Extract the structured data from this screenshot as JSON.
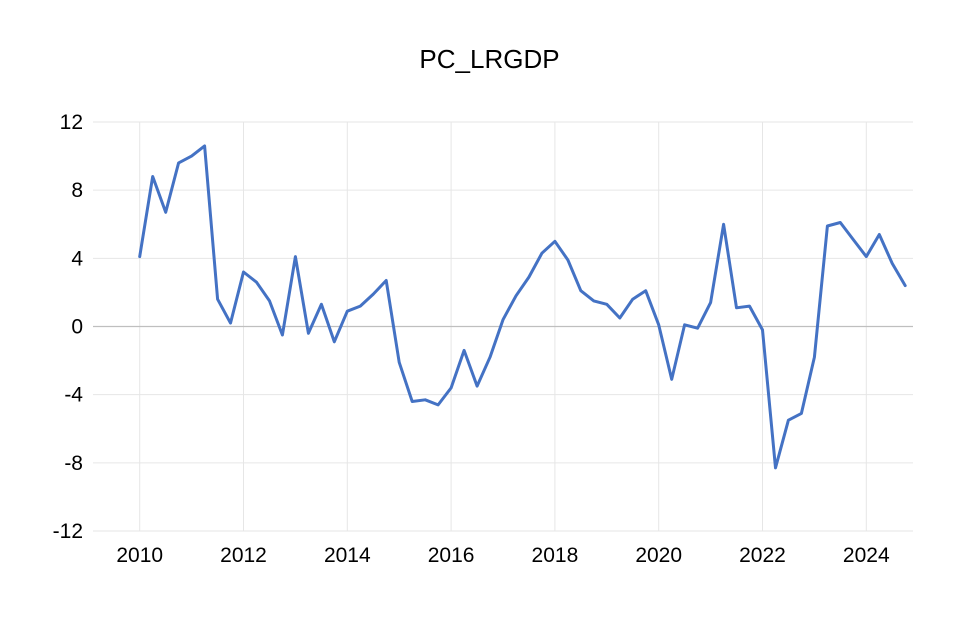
{
  "chart_data": {
    "type": "line",
    "title": "PC_LRGDP",
    "xlabel": "",
    "ylabel": "",
    "ylim": [
      -12,
      12
    ],
    "yticks": [
      12,
      8,
      4,
      0,
      -4,
      -8,
      -12
    ],
    "xlim": [
      2009.1,
      2024.9
    ],
    "xticks": [
      2010,
      2012,
      2014,
      2016,
      2018,
      2020,
      2022,
      2024
    ],
    "grid": true,
    "legend": "none",
    "line_color": "#4472c4",
    "series": [
      {
        "x": [
          2010.0,
          2010.25,
          2010.5,
          2010.75,
          2011.0,
          2011.25,
          2011.5,
          2011.75,
          2012.0,
          2012.25,
          2012.5,
          2012.75,
          2013.0,
          2013.25,
          2013.5,
          2013.75,
          2014.0,
          2014.25,
          2014.5,
          2014.75,
          2015.0,
          2015.25,
          2015.5,
          2015.75,
          2016.0,
          2016.25,
          2016.5,
          2016.75,
          2017.0,
          2017.25,
          2017.5,
          2017.75,
          2018.0,
          2018.25,
          2018.5,
          2018.75,
          2019.0,
          2019.25,
          2019.5,
          2019.75,
          2020.0,
          2020.25,
          2020.5,
          2020.75,
          2021.0,
          2021.25,
          2021.5,
          2021.75,
          2022.0,
          2022.25,
          2022.5,
          2022.75,
          2023.0,
          2023.25,
          2023.5,
          2023.75,
          2024.0,
          2024.25,
          2024.5,
          2024.75
        ],
        "values": [
          4.1,
          8.8,
          6.7,
          9.6,
          10.0,
          10.6,
          1.6,
          0.2,
          3.2,
          2.6,
          1.5,
          -0.5,
          4.1,
          -0.4,
          1.3,
          -0.9,
          0.9,
          1.2,
          1.9,
          2.7,
          -2.1,
          -4.4,
          -4.3,
          -4.6,
          -3.6,
          -1.4,
          -3.5,
          -1.8,
          0.4,
          1.8,
          2.9,
          4.3,
          5.0,
          3.9,
          2.1,
          1.5,
          1.3,
          0.5,
          1.6,
          2.1,
          0.1,
          -3.1,
          0.1,
          -0.1,
          1.4,
          6.0,
          1.1,
          1.2,
          -0.2,
          -8.3,
          -5.5,
          -5.1,
          -1.8,
          5.9,
          6.1,
          5.1,
          4.1,
          5.4,
          3.7,
          2.4
        ]
      }
    ]
  }
}
